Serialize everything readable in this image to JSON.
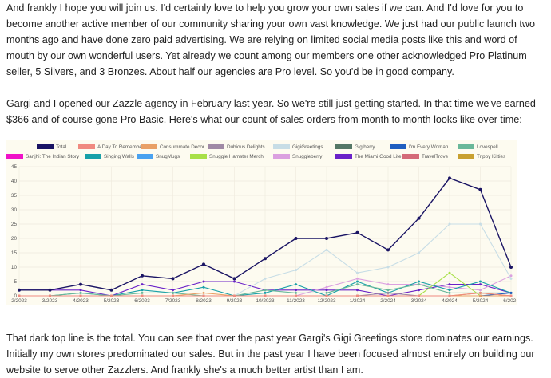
{
  "article": {
    "para1": "And frankly I hope you will join us. I'd certainly love to help you grow your own sales if we can. And I'd love for you to become another active member of our community sharing your own vast knowledge. We just had our public launch two months ago and have done zero paid advertising. We are relying on limited social media posts like this and word of mouth by our own wonderful users. Yet already we count among our members one other acknowledged Pro Platinum seller, 5 Silvers, and 3 Bronzes. About half our agencies are Pro level. So you'd be in good company.",
    "para2": "Gargi and I opened our Zazzle agency in February last year. So we're still just getting started. In that time we've earned $366 and of course gone Pro Basic. Here's what our count of sales orders from month to month looks like over time:",
    "para3": "That dark top line is the total. You can see that over the past year Gargi's Gigi Greetings store dominates our earnings. Initially my own stores predominated our sales. But in the past year I have been focused almost entirely on building our website to serve other Zazzlers. And frankly she's a much better artist than I am."
  },
  "chart_data": {
    "type": "line",
    "x": [
      "2/2023",
      "3/2023",
      "4/2023",
      "5/2023",
      "6/2023",
      "7/2023",
      "8/2023",
      "9/2023",
      "10/2023",
      "11/2023",
      "12/2023",
      "1/2024",
      "2/2024",
      "3/2024",
      "4/2024",
      "5/2024",
      "6/2024"
    ],
    "ylim": [
      0,
      45
    ],
    "yticks": [
      0,
      5,
      10,
      15,
      20,
      25,
      30,
      35,
      40,
      45
    ],
    "grid": true,
    "legend_position": "top",
    "series": [
      {
        "name": "Total",
        "color": "#1a1464",
        "values": [
          2,
          2,
          4,
          2,
          7,
          6,
          11,
          6,
          13,
          20,
          20,
          22,
          16,
          27,
          41,
          37,
          10
        ]
      },
      {
        "name": "A Day To Remember",
        "color": "#f08a80",
        "values": [
          0,
          0,
          0,
          0,
          0,
          0,
          0,
          0,
          0,
          0,
          0,
          0,
          0,
          0,
          0,
          1,
          0
        ]
      },
      {
        "name": "Consummate Decor",
        "color": "#e9a066",
        "values": [
          0,
          0,
          0,
          0,
          0,
          0,
          1,
          0,
          0,
          0,
          0,
          0,
          0,
          0,
          0,
          0,
          0
        ]
      },
      {
        "name": "Dubious Delights",
        "color": "#a08aa6",
        "values": [
          0,
          0,
          0,
          0,
          0,
          0,
          0,
          0,
          0,
          0,
          0,
          0,
          1,
          0,
          0,
          0,
          0
        ]
      },
      {
        "name": "GigiGreetings",
        "color": "#c7dde6",
        "values": [
          0,
          0,
          0,
          0,
          0,
          0,
          0,
          0,
          6,
          9,
          16,
          8,
          10,
          15,
          25,
          25,
          6
        ]
      },
      {
        "name": "Gigiberry",
        "color": "#557766",
        "values": [
          0,
          0,
          0,
          0,
          0,
          0,
          0,
          0,
          0,
          0,
          0,
          0,
          0,
          0,
          0,
          0,
          0
        ]
      },
      {
        "name": "I'm Every Woman",
        "color": "#1f5ec0",
        "values": [
          0,
          0,
          0,
          0,
          0,
          0,
          0,
          0,
          0,
          0,
          0,
          0,
          0,
          0,
          0,
          0,
          1
        ]
      },
      {
        "name": "Lovespell",
        "color": "#6ab89a",
        "values": [
          0,
          0,
          1,
          0,
          1,
          1,
          0,
          0,
          2,
          1,
          1,
          4,
          2,
          4,
          1,
          1,
          1
        ]
      },
      {
        "name": "Sanjhi: The Indian Story",
        "color": "#f012c8",
        "values": [
          0,
          0,
          0,
          0,
          0,
          0,
          0,
          0,
          0,
          0,
          0,
          0,
          0,
          0,
          0,
          0,
          0
        ]
      },
      {
        "name": "Singing Walls",
        "color": "#18a0a8",
        "values": [
          0,
          0,
          1,
          0,
          2,
          1,
          3,
          0,
          1,
          4,
          0,
          5,
          1,
          5,
          2,
          5,
          1
        ]
      },
      {
        "name": "SnugMugs",
        "color": "#4aa2f0",
        "values": [
          0,
          0,
          0,
          0,
          0,
          0,
          0,
          0,
          0,
          0,
          0,
          0,
          0,
          0,
          0,
          0,
          0
        ]
      },
      {
        "name": "Snuggle Hamster Merch",
        "color": "#a8e048",
        "values": [
          0,
          0,
          0,
          0,
          0,
          0,
          0,
          0,
          0,
          0,
          0,
          0,
          0,
          0,
          8,
          0,
          0
        ]
      },
      {
        "name": "Snuggleberry",
        "color": "#dba0e0",
        "values": [
          0,
          0,
          0,
          0,
          0,
          0,
          0,
          0,
          0,
          0,
          3,
          6,
          4,
          4,
          3,
          2,
          7
        ]
      },
      {
        "name": "The Miami Good Life",
        "color": "#6a22c8",
        "values": [
          2,
          2,
          2,
          0,
          4,
          2,
          5,
          5,
          2,
          2,
          2,
          2,
          0,
          2,
          4,
          4,
          1
        ]
      },
      {
        "name": "TravelTrove",
        "color": "#d46a78",
        "values": [
          0,
          0,
          0,
          0,
          0,
          0,
          0,
          0,
          0,
          0,
          0,
          0,
          0,
          0,
          0,
          0,
          0
        ]
      },
      {
        "name": "Trippy Kitties",
        "color": "#c8a030",
        "values": [
          0,
          0,
          0,
          0,
          0,
          0,
          0,
          0,
          0,
          0,
          0,
          0,
          0,
          0,
          0,
          1,
          0
        ]
      }
    ]
  }
}
